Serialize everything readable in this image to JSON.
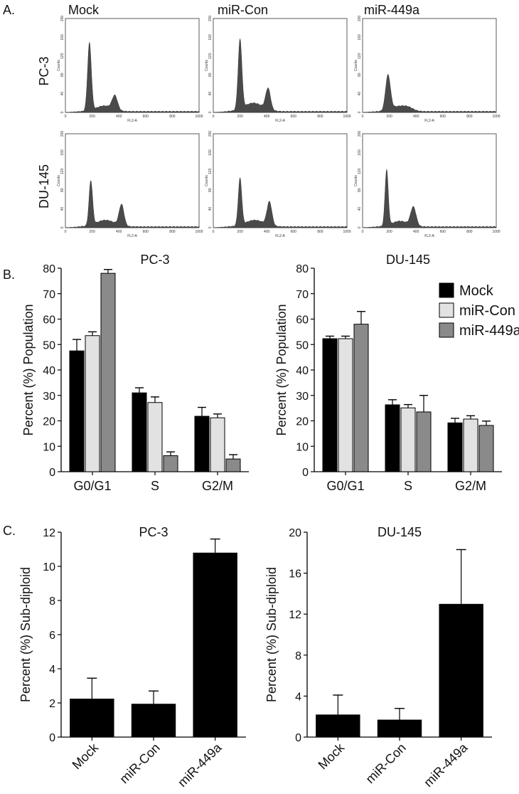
{
  "panel_labels": {
    "a": "A.",
    "b": "B.",
    "c": "C."
  },
  "histograms": {
    "columns": [
      "Mock",
      "miR-Con",
      "miR-449a"
    ],
    "rows": [
      "PC-3",
      "DU-145"
    ],
    "x_axis_label": "FL2-A",
    "y_axis_label": "Counts",
    "x_ticks": [
      "0",
      "200",
      "400",
      "600",
      "800",
      "1000"
    ],
    "y_ticks": [
      "0",
      "40",
      "80",
      "120",
      "160",
      "200"
    ]
  },
  "chart_data": [
    {
      "type": "bar",
      "panel": "B",
      "title": "PC-3",
      "categories": [
        "G0/G1",
        "S",
        "G2/M"
      ],
      "series": [
        {
          "name": "Mock",
          "values": [
            47.5,
            31,
            21.8
          ],
          "errors": [
            4.5,
            2,
            3.5
          ],
          "color": "#000000"
        },
        {
          "name": "miR-Con",
          "values": [
            53.5,
            27.2,
            21.2
          ],
          "errors": [
            1.5,
            2.2,
            1.5
          ],
          "color": "#e2e2e2"
        },
        {
          "name": "miR-449a",
          "values": [
            78,
            6.3,
            5
          ],
          "errors": [
            1.5,
            1.5,
            1.7
          ],
          "color": "#8a8a8a"
        }
      ],
      "ylabel": "Percent (%) Population",
      "ylim": [
        0,
        80
      ],
      "yticks": [
        "0",
        "10",
        "20",
        "30",
        "40",
        "50",
        "60",
        "70",
        "80"
      ]
    },
    {
      "type": "bar",
      "panel": "B",
      "title": "DU-145",
      "categories": [
        "G0/G1",
        "S",
        "G2/M"
      ],
      "series": [
        {
          "name": "Mock",
          "values": [
            52.3,
            26.3,
            19.2
          ],
          "errors": [
            1,
            2,
            1.8
          ],
          "color": "#000000"
        },
        {
          "name": "miR-Con",
          "values": [
            52.3,
            25.1,
            20.7
          ],
          "errors": [
            1,
            1.3,
            1.3
          ],
          "color": "#e2e2e2"
        },
        {
          "name": "miR-449a",
          "values": [
            58,
            23.5,
            18.2
          ],
          "errors": [
            5,
            6.5,
            1.7
          ],
          "color": "#8a8a8a"
        }
      ],
      "legend": {
        "position": "top-right",
        "items": [
          "Mock",
          "miR-Con",
          "miR-449a"
        ]
      },
      "ylabel": "Percent (%) Population",
      "ylim": [
        0,
        80
      ],
      "yticks": [
        "0",
        "10",
        "20",
        "30",
        "40",
        "50",
        "60",
        "70",
        "80"
      ]
    },
    {
      "type": "bar",
      "panel": "C",
      "title": "PC-3",
      "categories": [
        "Mock",
        "miR-Con",
        "miR-449a"
      ],
      "values": [
        2.25,
        1.95,
        10.8
      ],
      "errors": [
        1.2,
        0.75,
        0.8
      ],
      "ylabel": "Percent (%) Sub-diploid",
      "ylim": [
        0,
        12
      ],
      "yticks": [
        "0",
        "2",
        "4",
        "6",
        "8",
        "10",
        "12"
      ]
    },
    {
      "type": "bar",
      "panel": "C",
      "title": "DU-145",
      "categories": [
        "Mock",
        "miR-Con",
        "miR-449a"
      ],
      "values": [
        2.2,
        1.7,
        13
      ],
      "errors": [
        1.9,
        1.1,
        5.3
      ],
      "ylabel": "Percent (%) Sub-diploid",
      "ylim": [
        0,
        20
      ],
      "yticks": [
        "0",
        "4",
        "8",
        "12",
        "16",
        "20"
      ]
    }
  ]
}
